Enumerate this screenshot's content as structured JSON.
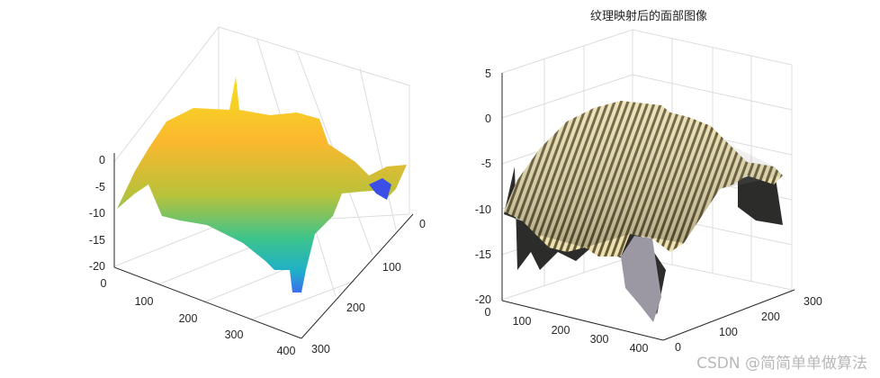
{
  "chart_data": [
    {
      "type": "surface3d",
      "title": "",
      "colormap": "parula",
      "x_ticks": [
        "0",
        "100",
        "200",
        "300",
        "400"
      ],
      "y_ticks": [
        "0",
        "100",
        "200",
        "300"
      ],
      "z_ticks": [
        "0",
        "-5",
        "-10",
        "-15",
        "-20"
      ],
      "xlim": [
        0,
        400
      ],
      "ylim": [
        0,
        300
      ],
      "zlim": [
        -20,
        0
      ],
      "grid": true
    },
    {
      "type": "surface3d",
      "title": "纹理映射后的面部图像",
      "colormap": "texture",
      "x_ticks": [
        "0",
        "100",
        "200",
        "300",
        "400"
      ],
      "y_ticks": [
        "0",
        "100",
        "200",
        "300"
      ],
      "z_ticks": [
        "5",
        "0",
        "-5",
        "-10",
        "-15",
        "-20"
      ],
      "xlim": [
        0,
        400
      ],
      "ylim": [
        0,
        300
      ],
      "zlim": [
        -20,
        5
      ],
      "grid": true
    }
  ],
  "watermark": "CSDN @简简单单做算法"
}
